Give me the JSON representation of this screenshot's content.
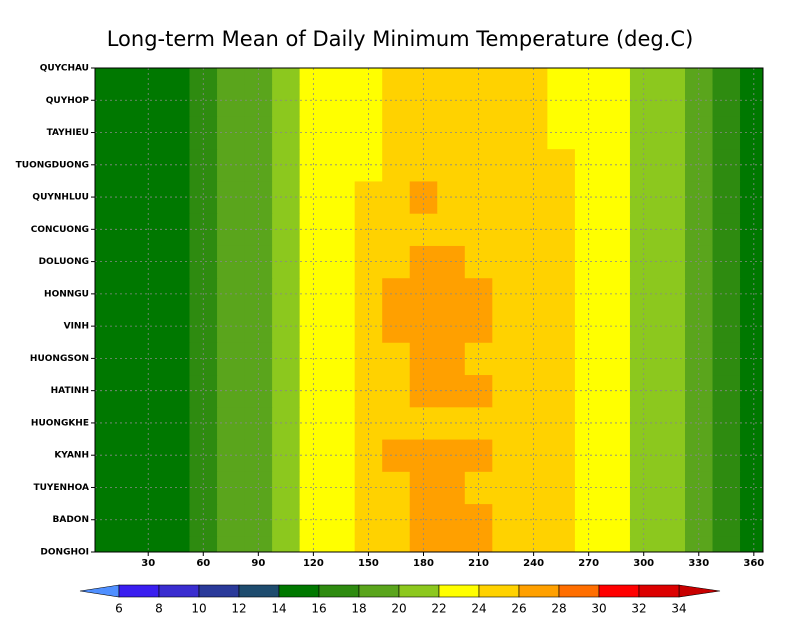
{
  "chart_data": {
    "type": "heatmap",
    "title": "Long-term Mean of Daily Minimum Temperature (deg.C)",
    "categories": [
      "DONGHOI",
      "BADON",
      "TUYENHOA",
      "KYANH",
      "HUONGKHE",
      "HATINH",
      "HUONGSON",
      "VINH",
      "HONNGU",
      "DOLUONG",
      "CONCUONG",
      "QUYNHLUU",
      "TUONGDUONG",
      "TAYHIEU",
      "QUYHOP",
      "QUYCHAU"
    ],
    "x": [
      1,
      15,
      30,
      45,
      60,
      75,
      90,
      105,
      120,
      135,
      150,
      165,
      180,
      195,
      210,
      225,
      240,
      255,
      270,
      285,
      300,
      315,
      330,
      345,
      360,
      365
    ],
    "xlim": [
      1,
      365
    ],
    "xticks": [
      30,
      60,
      90,
      120,
      150,
      180,
      210,
      240,
      270,
      300,
      330,
      360
    ],
    "grid": true,
    "z": [
      [
        15,
        15,
        15,
        15.5,
        17,
        19,
        19.5,
        21,
        23,
        23,
        24.5,
        25,
        26,
        26.5,
        26,
        25,
        25,
        24.5,
        23,
        22.5,
        21,
        20,
        19,
        17,
        15,
        15
      ],
      [
        15,
        15,
        15,
        15.5,
        17,
        19,
        19.5,
        21,
        23,
        23,
        24.5,
        25.5,
        26.5,
        26.5,
        26.5,
        25,
        25,
        24.5,
        23,
        22.5,
        21,
        20,
        19,
        17,
        15,
        15
      ],
      [
        15,
        15,
        15,
        15.5,
        17,
        18.5,
        19.5,
        21,
        23,
        23,
        24.5,
        25,
        26,
        26,
        25.5,
        25,
        25,
        24.5,
        23,
        22.5,
        21,
        20,
        19,
        17,
        15,
        15
      ],
      [
        15,
        15,
        15,
        15.5,
        17,
        18.5,
        19.5,
        21,
        23,
        23,
        24.5,
        26,
        26.5,
        26.5,
        26.5,
        25,
        25,
        24.5,
        23,
        22.5,
        21,
        20,
        19,
        17,
        15,
        15
      ],
      [
        15,
        15,
        15,
        15.5,
        17,
        18.5,
        19.5,
        21,
        23,
        23,
        24.5,
        25,
        25.5,
        25.5,
        25,
        25,
        25,
        24.5,
        23,
        22.5,
        21,
        20,
        19,
        17,
        15,
        15
      ],
      [
        15,
        15,
        15,
        15.5,
        17,
        18.5,
        19.5,
        21,
        23,
        23,
        24.5,
        25,
        26.5,
        26.5,
        26,
        25,
        25,
        24.5,
        23,
        22.5,
        21,
        20,
        19,
        17,
        15,
        15
      ],
      [
        15,
        15,
        15,
        15.5,
        17,
        18.5,
        19.5,
        21,
        23,
        23,
        24.5,
        25,
        26,
        26,
        25.5,
        25,
        25,
        24.5,
        23,
        22.5,
        21,
        20,
        19,
        17,
        15,
        15
      ],
      [
        15,
        15,
        15,
        15.5,
        17,
        18.5,
        19.5,
        21,
        23,
        23,
        24.5,
        26,
        26.5,
        26.5,
        26,
        25,
        25,
        24.5,
        23,
        22.5,
        21,
        20,
        19,
        17,
        15,
        15
      ],
      [
        15,
        15,
        15,
        15.5,
        17,
        18.5,
        19.5,
        21,
        23,
        23,
        24.5,
        26,
        26.5,
        26.5,
        26,
        25,
        25,
        24.5,
        23,
        22.5,
        21,
        20,
        19,
        17,
        15,
        15
      ],
      [
        15,
        15,
        15,
        15.5,
        17,
        18.5,
        19.5,
        21,
        23,
        23,
        24.5,
        25,
        26,
        26,
        25.5,
        25,
        25,
        24.5,
        23,
        22.5,
        21,
        20,
        19,
        17,
        15,
        15
      ],
      [
        15,
        15,
        15,
        15.5,
        17,
        18.5,
        19.5,
        21,
        23,
        23,
        24.5,
        25,
        25.5,
        25.5,
        25,
        25,
        25,
        24.5,
        23,
        22.5,
        21,
        20,
        19,
        17,
        15,
        15
      ],
      [
        15,
        15,
        15,
        15.5,
        17,
        18.5,
        19.5,
        21,
        23,
        23,
        24.5,
        25,
        26,
        25.5,
        25,
        25,
        25,
        24.5,
        23,
        22.5,
        21,
        20,
        19,
        17,
        15,
        15
      ],
      [
        15,
        15,
        15,
        15.5,
        17,
        18.5,
        19.5,
        21,
        23,
        23,
        23.5,
        24.5,
        25,
        25,
        25,
        25,
        24.5,
        24,
        23,
        22.5,
        21,
        20,
        18.5,
        17,
        15,
        14.8
      ],
      [
        15,
        15,
        15,
        15.5,
        17,
        18.5,
        19.5,
        21,
        23,
        23,
        23.5,
        24.5,
        25,
        25,
        25,
        25,
        24.5,
        23.5,
        23,
        22.5,
        21,
        20,
        18.5,
        17,
        14.8,
        14.5
      ],
      [
        15,
        15,
        15,
        15.5,
        17,
        18.5,
        19.5,
        21,
        23,
        23,
        23.5,
        24.5,
        25,
        25,
        25,
        25,
        24.5,
        23.5,
        23,
        22.5,
        21,
        20,
        18.5,
        17,
        15,
        14.5
      ],
      [
        14.8,
        15,
        15,
        15.5,
        17,
        18.5,
        19.5,
        21,
        23,
        23,
        23.5,
        24.5,
        25,
        25,
        25,
        25,
        24.5,
        23.5,
        23,
        22.5,
        21,
        20,
        18.5,
        17,
        15,
        14.5
      ]
    ],
    "levels": [
      6,
      8,
      10,
      12,
      14,
      16,
      18,
      20,
      22,
      24,
      26,
      28,
      30,
      32,
      34
    ],
    "colors": [
      "#3a1ef0",
      "#3a2dd0",
      "#2a3a9a",
      "#1e4c6e",
      "#007800",
      "#2e8b10",
      "#5aa51c",
      "#8cc81e",
      "#ffff00",
      "#ffd200",
      "#ffa000",
      "#ff6e00",
      "#ff0000",
      "#dc0000"
    ],
    "under_color": "#4f8fff",
    "over_color": "#c80000"
  }
}
